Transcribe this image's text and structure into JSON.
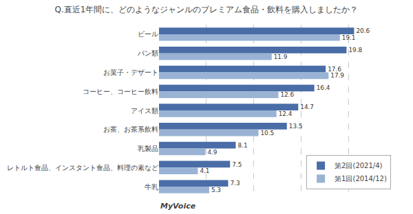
{
  "chart_data": {
    "type": "bar",
    "orientation": "horizontal",
    "title": "Q.直近1年間に、どのようなジャンルのプレミアム食品・飲料を購入しましたか？",
    "categories": [
      "ビール",
      "パン類",
      "お菓子・デザート",
      "コーヒー、コーヒー飲料",
      "アイス類",
      "お茶、お茶系飲料",
      "乳製品",
      "レトルト食品、インスタント食品、料理の素など",
      "牛乳"
    ],
    "series": [
      {
        "name": "第2回(2021/4)",
        "color": "#4a6da7",
        "values": [
          20.6,
          19.8,
          17.6,
          16.4,
          14.7,
          13.5,
          8.1,
          7.5,
          7.3
        ]
      },
      {
        "name": "第1回(2014/12)",
        "color": "#9ab3d5",
        "values": [
          19.1,
          11.9,
          17.9,
          12.6,
          12.4,
          10.5,
          4.9,
          4.1,
          5.3
        ]
      }
    ],
    "xlim": [
      0,
      25
    ],
    "xticks": [
      0,
      5,
      10,
      15,
      20,
      25
    ],
    "grid": true,
    "legend": "lower right",
    "data_labels": true,
    "tick_labels": "y",
    "annotations": [
      "MyVoice"
    ]
  }
}
